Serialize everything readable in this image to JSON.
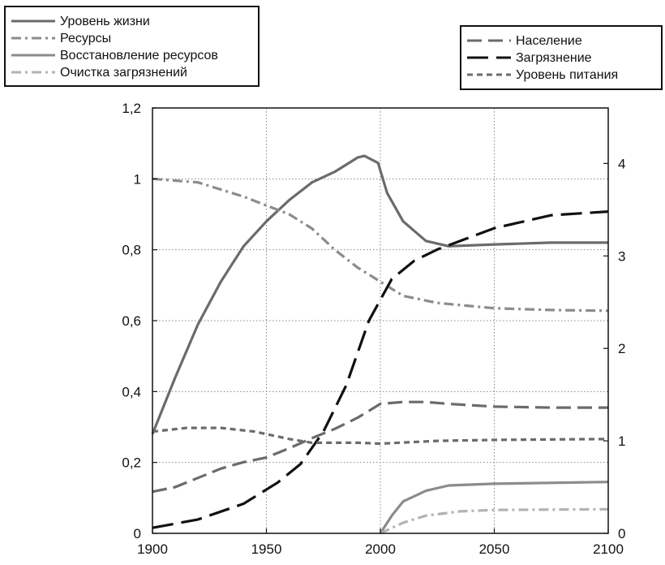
{
  "chart_data": {
    "type": "line",
    "xlim": [
      1900,
      2100
    ],
    "x_ticks": [
      "1900",
      "1950",
      "2000",
      "2050",
      "2100"
    ],
    "y_left": {
      "lim": [
        0,
        1.2
      ],
      "ticks": [
        "0",
        "0,2",
        "0,4",
        "0,6",
        "0,8",
        "1",
        "1,2"
      ]
    },
    "y_right": {
      "lim": [
        0,
        4.6
      ],
      "ticks": [
        "0",
        "1",
        "2",
        "3",
        "4"
      ]
    },
    "grid": true,
    "legends": [
      {
        "placement": "top-left",
        "entries": [
          "Уровень жизни",
          "Ресурсы",
          "Восстановление ресурсов",
          "Очистка загрязнений"
        ]
      },
      {
        "placement": "top-right",
        "entries": [
          "Население",
          "Загрязнение",
          "Уровень питания"
        ]
      }
    ],
    "series": [
      {
        "name": "Уровень жизни",
        "axis": "left",
        "color": "#6b6b6b",
        "style": "solid",
        "points": [
          [
            1900,
            0.28
          ],
          [
            1910,
            0.44
          ],
          [
            1920,
            0.59
          ],
          [
            1930,
            0.71
          ],
          [
            1940,
            0.81
          ],
          [
            1950,
            0.88
          ],
          [
            1960,
            0.94
          ],
          [
            1970,
            0.99
          ],
          [
            1980,
            1.02
          ],
          [
            1990,
            1.06
          ],
          [
            1993,
            1.065
          ],
          [
            1999,
            1.045
          ],
          [
            2003,
            0.96
          ],
          [
            2010,
            0.88
          ],
          [
            2020,
            0.825
          ],
          [
            2030,
            0.81
          ],
          [
            2050,
            0.815
          ],
          [
            2075,
            0.82
          ],
          [
            2100,
            0.82
          ]
        ]
      },
      {
        "name": "Ресурсы",
        "axis": "left",
        "color": "#8c8c8c",
        "style": "dashdot",
        "points": [
          [
            1900,
            1.0
          ],
          [
            1920,
            0.99
          ],
          [
            1940,
            0.95
          ],
          [
            1960,
            0.9
          ],
          [
            1970,
            0.86
          ],
          [
            1980,
            0.8
          ],
          [
            1990,
            0.75
          ],
          [
            2000,
            0.71
          ],
          [
            2010,
            0.67
          ],
          [
            2025,
            0.65
          ],
          [
            2050,
            0.635
          ],
          [
            2075,
            0.63
          ],
          [
            2100,
            0.628
          ]
        ]
      },
      {
        "name": "Восстановление ресурсов",
        "axis": "left",
        "color": "#8c8c8c",
        "style": "solid",
        "points": [
          [
            2000,
            0.0
          ],
          [
            2005,
            0.05
          ],
          [
            2010,
            0.09
          ],
          [
            2020,
            0.12
          ],
          [
            2030,
            0.135
          ],
          [
            2050,
            0.14
          ],
          [
            2100,
            0.145
          ]
        ]
      },
      {
        "name": "Очистка загрязнений",
        "axis": "left",
        "color": "#b3b3b3",
        "style": "dashdot",
        "points": [
          [
            2000,
            0.0
          ],
          [
            2010,
            0.03
          ],
          [
            2020,
            0.05
          ],
          [
            2035,
            0.062
          ],
          [
            2050,
            0.066
          ],
          [
            2100,
            0.068
          ]
        ]
      },
      {
        "name": "Население",
        "axis": "right",
        "color": "#6b6b6b",
        "style": "dash",
        "points": [
          [
            1900,
            0.45
          ],
          [
            1910,
            0.5
          ],
          [
            1920,
            0.6
          ],
          [
            1930,
            0.7
          ],
          [
            1940,
            0.77
          ],
          [
            1950,
            0.82
          ],
          [
            1960,
            0.92
          ],
          [
            1970,
            1.03
          ],
          [
            1980,
            1.13
          ],
          [
            1990,
            1.25
          ],
          [
            2000,
            1.4
          ],
          [
            2010,
            1.42
          ],
          [
            2020,
            1.42
          ],
          [
            2030,
            1.4
          ],
          [
            2050,
            1.37
          ],
          [
            2075,
            1.36
          ],
          [
            2100,
            1.36
          ]
        ]
      },
      {
        "name": "Загрязнение",
        "axis": "right",
        "color": "#111111",
        "style": "longdash",
        "points": [
          [
            1900,
            0.06
          ],
          [
            1920,
            0.15
          ],
          [
            1940,
            0.32
          ],
          [
            1955,
            0.55
          ],
          [
            1965,
            0.75
          ],
          [
            1975,
            1.1
          ],
          [
            1985,
            1.6
          ],
          [
            1995,
            2.3
          ],
          [
            2005,
            2.75
          ],
          [
            2015,
            2.95
          ],
          [
            2025,
            3.07
          ],
          [
            2050,
            3.3
          ],
          [
            2075,
            3.44
          ],
          [
            2100,
            3.48
          ]
        ]
      },
      {
        "name": "Уровень питания",
        "axis": "right",
        "color": "#6b6b6b",
        "style": "shortdash",
        "points": [
          [
            1900,
            1.1
          ],
          [
            1915,
            1.14
          ],
          [
            1930,
            1.14
          ],
          [
            1945,
            1.1
          ],
          [
            1960,
            1.02
          ],
          [
            1970,
            0.98
          ],
          [
            1990,
            0.98
          ],
          [
            2000,
            0.97
          ],
          [
            2025,
            1.0
          ],
          [
            2050,
            1.01
          ],
          [
            2100,
            1.02
          ]
        ]
      }
    ]
  }
}
